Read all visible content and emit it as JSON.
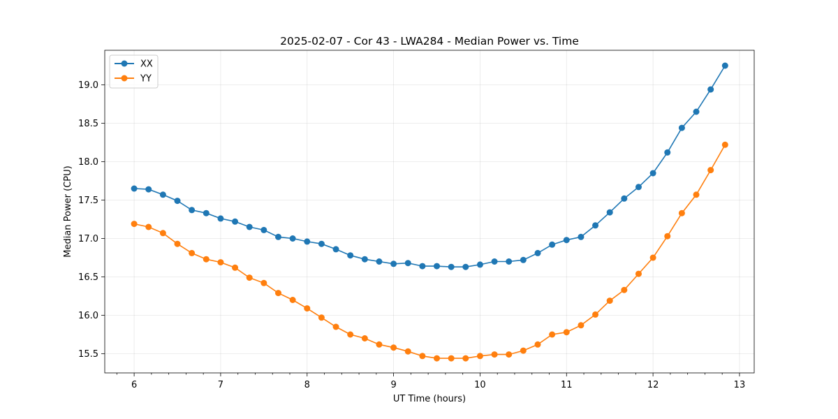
{
  "chart_data": {
    "type": "line",
    "title": "2025-02-07 - Cor 43 - LWA284 - Median Power vs. Time",
    "xlabel": "UT Time (hours)",
    "ylabel": "Median Power (CPU)",
    "xlim": [
      5.66,
      13.17
    ],
    "ylim": [
      15.25,
      19.45
    ],
    "xticks": [
      6,
      7,
      8,
      9,
      10,
      11,
      12,
      13
    ],
    "xtick_labels": [
      "6",
      "7",
      "8",
      "9",
      "10",
      "11",
      "12",
      "13"
    ],
    "yticks": [
      15.5,
      16.0,
      16.5,
      17.0,
      17.5,
      18.0,
      18.5,
      19.0
    ],
    "ytick_labels": [
      "15.5",
      "16.0",
      "16.5",
      "17.0",
      "17.5",
      "18.0",
      "18.5",
      "19.0"
    ],
    "grid": true,
    "legend_position": "top-left",
    "x": [
      6.0,
      6.1667,
      6.3333,
      6.5,
      6.6667,
      6.8333,
      7.0,
      7.1667,
      7.3333,
      7.5,
      7.6667,
      7.8333,
      8.0,
      8.1667,
      8.3333,
      8.5,
      8.6667,
      8.8333,
      9.0,
      9.1667,
      9.3333,
      9.5,
      9.6667,
      9.8333,
      10.0,
      10.1667,
      10.3333,
      10.5,
      10.6667,
      10.8333,
      11.0,
      11.1667,
      11.3333,
      11.5,
      11.6667,
      11.8333,
      12.0,
      12.1667,
      12.3333,
      12.5,
      12.6667,
      12.8333
    ],
    "series": [
      {
        "name": "XX",
        "color": "#1f77b4",
        "values": [
          17.65,
          17.64,
          17.57,
          17.49,
          17.37,
          17.33,
          17.26,
          17.22,
          17.15,
          17.11,
          17.02,
          17.0,
          16.96,
          16.93,
          16.86,
          16.78,
          16.73,
          16.7,
          16.67,
          16.68,
          16.64,
          16.64,
          16.63,
          16.63,
          16.66,
          16.7,
          16.7,
          16.72,
          16.81,
          16.92,
          16.98,
          17.02,
          17.17,
          17.34,
          17.52,
          17.67,
          17.85,
          18.12,
          18.44,
          18.65,
          18.94,
          19.25
        ]
      },
      {
        "name": "YY",
        "color": "#ff7f0e",
        "values": [
          17.19,
          17.15,
          17.07,
          16.93,
          16.81,
          16.73,
          16.69,
          16.62,
          16.49,
          16.42,
          16.29,
          16.2,
          16.09,
          15.97,
          15.85,
          15.75,
          15.7,
          15.62,
          15.58,
          15.53,
          15.47,
          15.44,
          15.44,
          15.44,
          15.47,
          15.49,
          15.49,
          15.54,
          15.62,
          15.75,
          15.78,
          15.87,
          16.01,
          16.19,
          16.33,
          16.54,
          16.75,
          17.03,
          17.33,
          17.57,
          17.89,
          18.22
        ]
      }
    ]
  }
}
